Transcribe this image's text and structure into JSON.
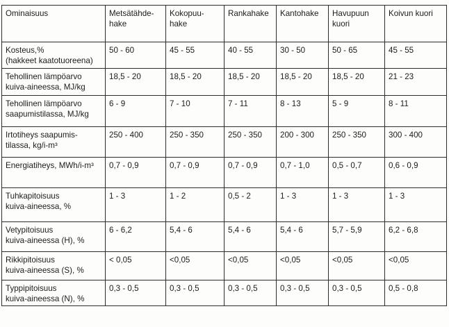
{
  "header": {
    "property_label": "Ominaisuus",
    "columns": [
      [
        "Metsätähde-",
        "hake"
      ],
      [
        "Kokopuu-",
        "hake"
      ],
      [
        "Rankahake"
      ],
      [
        "Kantohake"
      ],
      [
        "Havupuun",
        "kuori"
      ],
      [
        "Koivun kuori"
      ]
    ]
  },
  "rows": [
    {
      "label": [
        "Kosteus,%",
        "(hakkeet kaatotuoreena)"
      ],
      "values": [
        "50 - 60",
        "45 - 55",
        "40 - 55",
        "30 - 50",
        "50 - 65",
        "45 - 55"
      ]
    },
    {
      "label": [
        "Tehollinen lämpöarvo",
        "kuiva-aineessa, MJ/kg"
      ],
      "values": [
        "18,5 - 20",
        "18,5 - 20",
        "18,5 - 20",
        "18,5 - 20",
        "18,5 - 20",
        "21 - 23"
      ]
    },
    {
      "label": [
        "Tehollinen lämpöarvo",
        "saapumistilassa, MJ/kg"
      ],
      "values": [
        "6 - 9",
        "7 - 10",
        "7 - 11",
        "8 - 13",
        "5 - 9",
        "8 - 11"
      ]
    },
    {
      "label": [
        "Irtotiheys saapumis-",
        "tilassa, kg/i-m³"
      ],
      "values": [
        "250 - 400",
        "250 - 350",
        "250 - 350",
        "200 - 300",
        "250 - 350",
        "300 - 400"
      ]
    },
    {
      "label": [
        "Energiatiheys, MWh/i-m³"
      ],
      "values": [
        "0,7 - 0,9",
        "0,7 - 0,9",
        "0,7 - 0,9",
        "0,7 - 1,0",
        "0,5 - 0,7",
        "0,6 - 0,9"
      ]
    },
    {
      "label": [
        "Tuhkapitoisuus",
        "kuiva-aineessa, %"
      ],
      "values": [
        "1 - 3",
        "1 - 2",
        "0,5 - 2",
        "1 - 3",
        "1 - 3",
        "1 - 3"
      ]
    },
    {
      "label": [
        "Vetypitoisuus",
        "kuiva-aineessa (H), %"
      ],
      "values": [
        "6 - 6,2",
        "5,4 - 6",
        "5,4 - 6",
        "5,4 - 6",
        "5,7 - 5,9",
        "6,2 - 6,8"
      ]
    },
    {
      "label": [
        "Rikkipitoisuus",
        "kuiva-aineessa (S), %"
      ],
      "values": [
        "< 0,05",
        "<0,05",
        "<0,05",
        "<0,05",
        "<0,05",
        "<0,05"
      ]
    },
    {
      "label": [
        "Typpipitoisuus",
        "kuiva-aineessa (N), %"
      ],
      "values": [
        "0,3 - 0,5",
        "0,3 - 0,5",
        "0,3 - 0,5",
        "0,3 - 0,5",
        "0,3 - 0,5",
        "0,5 - 0,8"
      ]
    }
  ]
}
